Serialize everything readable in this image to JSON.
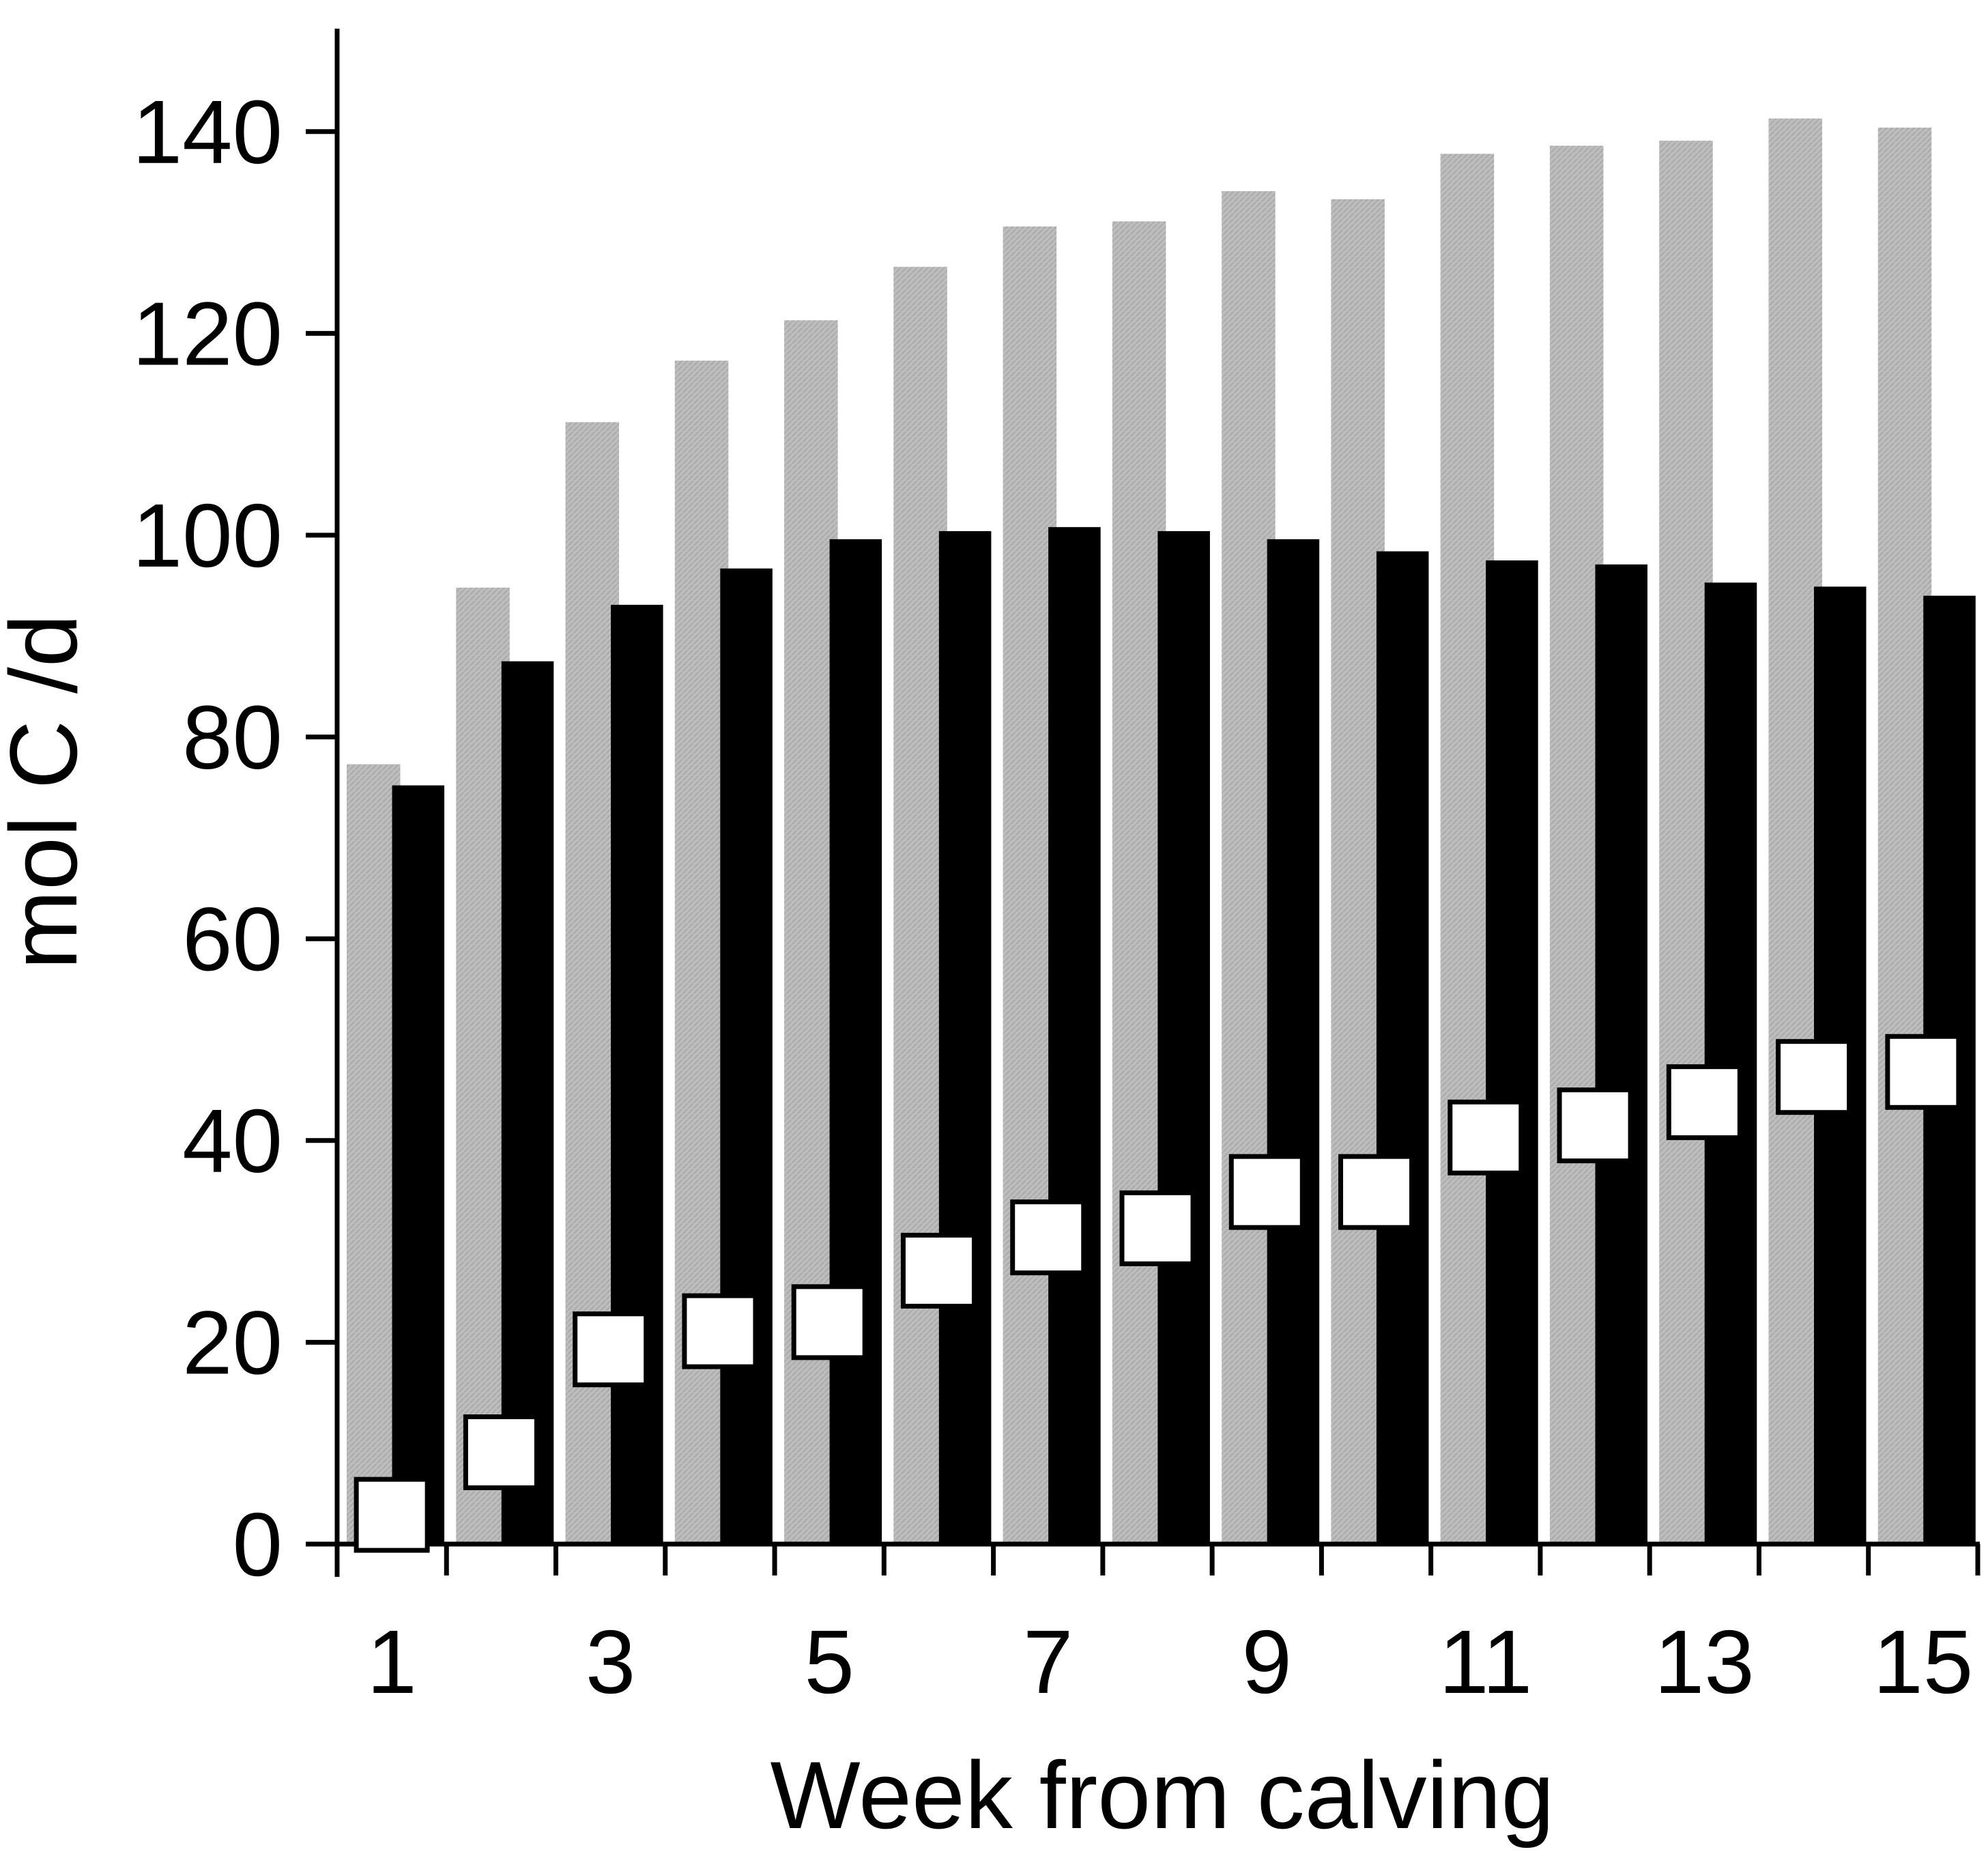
{
  "chart_data": {
    "type": "bar",
    "title": "",
    "xlabel": "Week from calving",
    "ylabel": "mol C /d",
    "ylim": [
      0,
      150
    ],
    "yticks": [
      0,
      20,
      40,
      60,
      80,
      100,
      120,
      140
    ],
    "categories": [
      1,
      2,
      3,
      4,
      5,
      6,
      7,
      8,
      9,
      10,
      11,
      12,
      13,
      14,
      15
    ],
    "xtick_labels": [
      "1",
      "3",
      "5",
      "7",
      "9",
      "11",
      "13",
      "15"
    ],
    "xtick_label_weeks": [
      1,
      3,
      5,
      7,
      9,
      11,
      13,
      15
    ],
    "series": [
      {
        "name": "gray bars",
        "kind": "bar",
        "color": "#b4b4b4",
        "values": [
          77.3,
          94.8,
          111.2,
          117.3,
          121.3,
          126.6,
          130.6,
          131.1,
          134.1,
          133.3,
          137.8,
          138.6,
          139.1,
          141.3,
          140.4
        ]
      },
      {
        "name": "black bars",
        "kind": "bar",
        "color": "#000000",
        "values": [
          75.2,
          87.5,
          93.1,
          96.7,
          99.6,
          100.4,
          100.8,
          100.4,
          99.6,
          98.4,
          97.5,
          97.1,
          95.3,
          94.9,
          94.0
        ]
      },
      {
        "name": "open squares",
        "kind": "marker",
        "marker": "square",
        "color": "#ffffff",
        "values": [
          2.9,
          9.1,
          19.3,
          21.1,
          22.0,
          27.1,
          30.4,
          31.3,
          34.9,
          34.9,
          40.3,
          41.5,
          43.8,
          46.3,
          46.8
        ]
      }
    ],
    "legend": "none",
    "grid": false
  }
}
